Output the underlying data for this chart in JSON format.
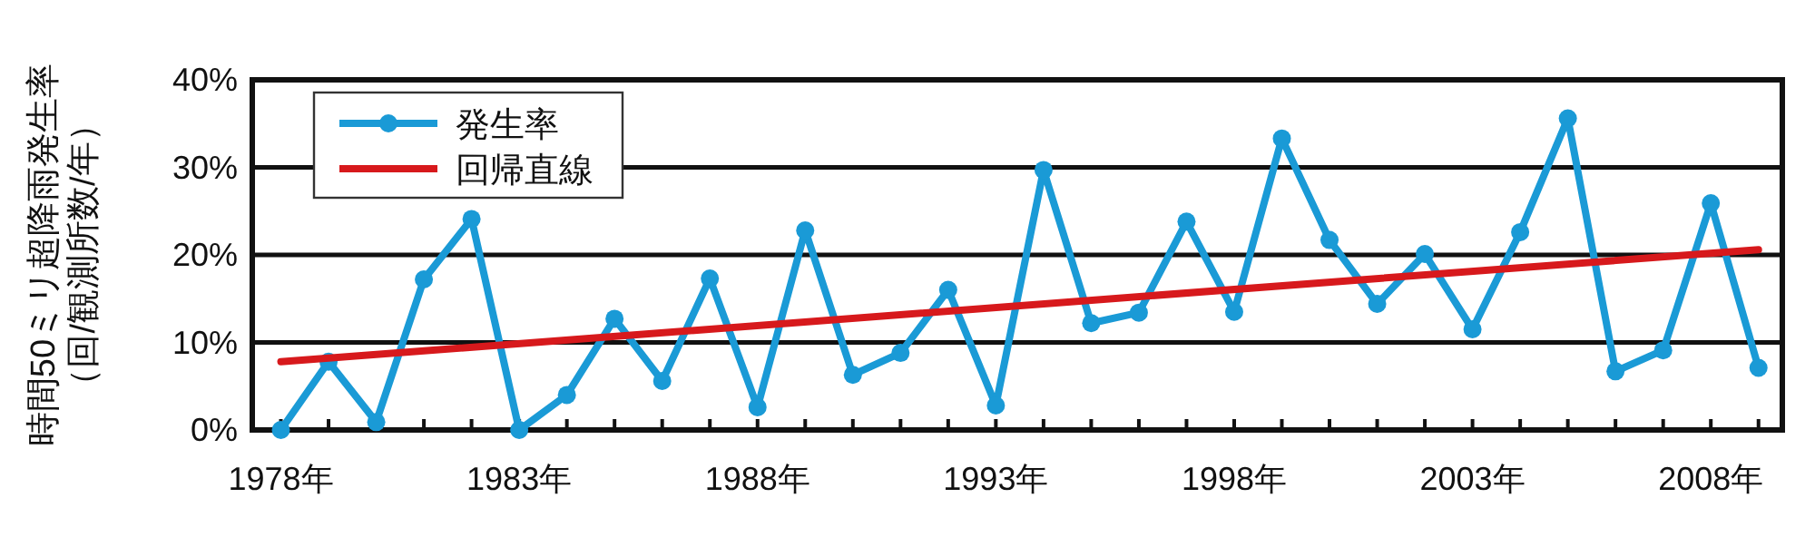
{
  "chart_data": {
    "type": "line",
    "ylabel": "時間50ミリ超降雨発生率（回/観測所数/年）",
    "x": [
      1978,
      1979,
      1980,
      1981,
      1982,
      1983,
      1984,
      1985,
      1986,
      1987,
      1988,
      1989,
      1990,
      1991,
      1992,
      1993,
      1994,
      1995,
      1996,
      1997,
      1998,
      1999,
      2000,
      2001,
      2002,
      2003,
      2004,
      2005,
      2006,
      2007,
      2008,
      2009
    ],
    "series": [
      {
        "name": "発生率",
        "color": "#1a9ad6",
        "marker": "circle",
        "values": [
          0,
          7.8,
          0.9,
          17.2,
          24.1,
          0,
          4.0,
          12.7,
          5.6,
          17.3,
          2.6,
          22.8,
          6.3,
          8.8,
          16.0,
          2.8,
          29.7,
          12.2,
          13.4,
          23.8,
          13.5,
          33.3,
          21.7,
          14.4,
          20.1,
          11.5,
          22.6,
          35.6,
          6.7,
          9.1,
          25.9,
          7.1
        ]
      },
      {
        "name": "回帰直線",
        "color": "#d7191c",
        "type": "line",
        "marker": "none",
        "x": [
          1978,
          2009
        ],
        "values": [
          7.8,
          20.6
        ]
      }
    ],
    "xlim": [
      1977.4,
      2009.5
    ],
    "xticks": [
      {
        "value": 1978,
        "label": "1978年"
      },
      {
        "value": 1979,
        "label": null
      },
      {
        "value": 1980,
        "label": null
      },
      {
        "value": 1981,
        "label": null
      },
      {
        "value": 1982,
        "label": null
      },
      {
        "value": 1983,
        "label": "1983年"
      },
      {
        "value": 1984,
        "label": null
      },
      {
        "value": 1985,
        "label": null
      },
      {
        "value": 1986,
        "label": null
      },
      {
        "value": 1987,
        "label": null
      },
      {
        "value": 1988,
        "label": "1988年"
      },
      {
        "value": 1989,
        "label": null
      },
      {
        "value": 1990,
        "label": null
      },
      {
        "value": 1991,
        "label": null
      },
      {
        "value": 1992,
        "label": null
      },
      {
        "value": 1993,
        "label": "1993年"
      },
      {
        "value": 1994,
        "label": null
      },
      {
        "value": 1995,
        "label": null
      },
      {
        "value": 1996,
        "label": null
      },
      {
        "value": 1997,
        "label": null
      },
      {
        "value": 1998,
        "label": "1998年"
      },
      {
        "value": 1999,
        "label": null
      },
      {
        "value": 2000,
        "label": null
      },
      {
        "value": 2001,
        "label": null
      },
      {
        "value": 2002,
        "label": null
      },
      {
        "value": 2003,
        "label": "2003年"
      },
      {
        "value": 2004,
        "label": null
      },
      {
        "value": 2005,
        "label": null
      },
      {
        "value": 2006,
        "label": null
      },
      {
        "value": 2007,
        "label": null
      },
      {
        "value": 2008,
        "label": "2008年"
      },
      {
        "value": 2009,
        "label": null
      }
    ],
    "ylim": [
      0,
      40
    ],
    "yticks": [
      {
        "value": 0,
        "label": "0%"
      },
      {
        "value": 10,
        "label": "10%"
      },
      {
        "value": 20,
        "label": "20%"
      },
      {
        "value": 30,
        "label": "30%"
      },
      {
        "value": 40,
        "label": "40%"
      }
    ],
    "grid": "y",
    "legend": "top left",
    "line_style": "solid"
  }
}
